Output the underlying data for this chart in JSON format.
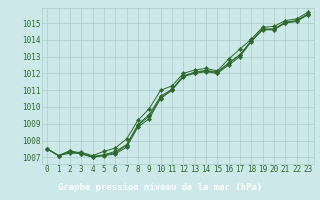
{
  "xlabel": "Graphe pression niveau de la mer (hPa)",
  "hours": [
    0,
    1,
    2,
    3,
    4,
    5,
    6,
    7,
    8,
    9,
    10,
    11,
    12,
    13,
    14,
    15,
    16,
    17,
    18,
    19,
    20,
    21,
    22,
    23
  ],
  "line1": [
    1007.5,
    1007.1,
    1007.4,
    1007.2,
    1007.0,
    1007.1,
    1007.2,
    1007.6,
    1008.8,
    1009.3,
    1010.5,
    1011.0,
    1011.8,
    1012.0,
    1012.1,
    1012.0,
    1012.5,
    1013.0,
    1013.9,
    1014.6,
    1014.6,
    1015.0,
    1015.1,
    1015.5
  ],
  "line2": [
    1007.5,
    1007.1,
    1007.35,
    1007.25,
    1007.05,
    1007.15,
    1007.35,
    1007.75,
    1008.95,
    1009.55,
    1010.65,
    1011.05,
    1011.85,
    1012.05,
    1012.15,
    1012.05,
    1012.6,
    1013.1,
    1013.95,
    1014.65,
    1014.65,
    1015.05,
    1015.15,
    1015.55
  ],
  "line3": [
    1007.5,
    1007.1,
    1007.3,
    1007.3,
    1007.1,
    1007.35,
    1007.55,
    1008.1,
    1009.2,
    1009.9,
    1011.0,
    1011.25,
    1012.0,
    1012.2,
    1012.3,
    1012.15,
    1012.85,
    1013.45,
    1014.05,
    1014.75,
    1014.8,
    1015.15,
    1015.25,
    1015.65
  ],
  "line4": [
    1007.5,
    1007.1,
    1007.25,
    1007.22,
    1007.02,
    1007.12,
    1007.28,
    1007.7,
    1008.9,
    1009.45,
    1010.55,
    1011.02,
    1011.82,
    1012.08,
    1012.18,
    1012.08,
    1012.62,
    1013.12,
    1013.92,
    1014.62,
    1014.62,
    1015.02,
    1015.12,
    1015.52
  ],
  "ylim_min": 1006.6,
  "ylim_max": 1015.9,
  "yticks": [
    1007,
    1008,
    1009,
    1010,
    1011,
    1012,
    1013,
    1014,
    1015
  ],
  "line_color": "#2d6a2d",
  "bg_color": "#cce8e8",
  "grid_color": "#aacccc",
  "label_bg": "#2d6a2d",
  "label_fg": "#ffffff",
  "tick_color": "#2d6a2d",
  "tick_fontsize": 5.5,
  "label_fontsize": 6.5
}
